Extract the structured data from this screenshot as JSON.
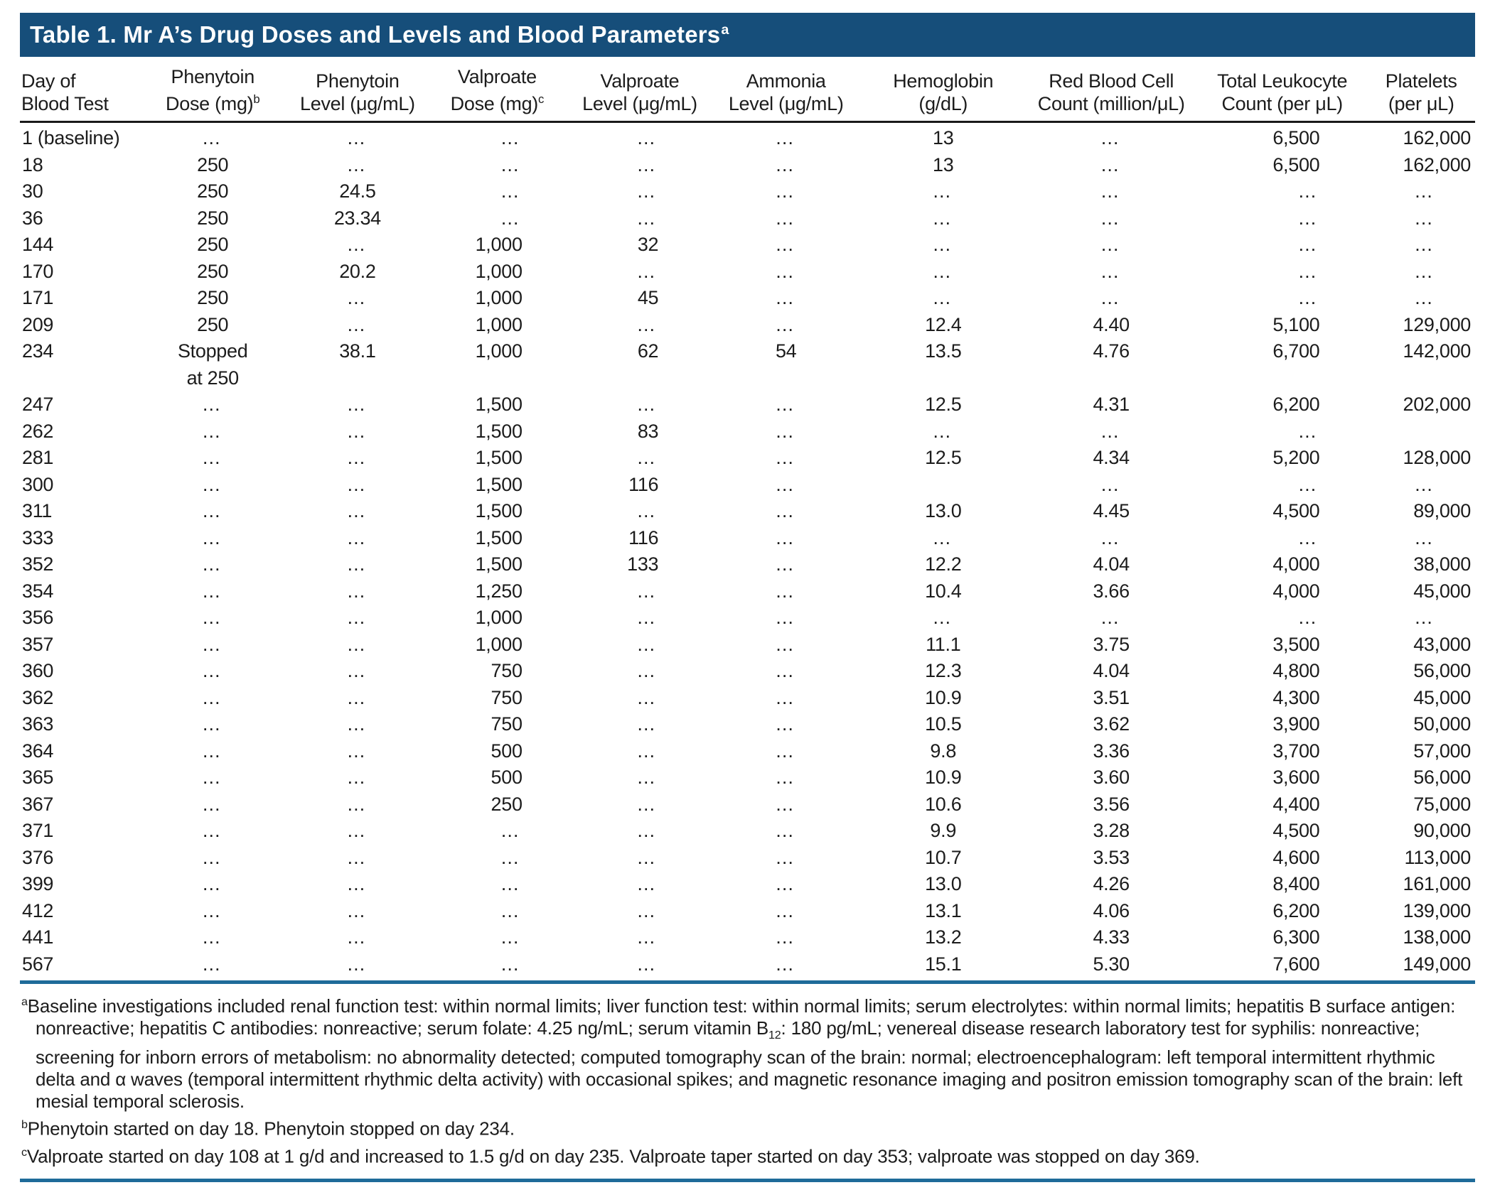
{
  "colors": {
    "title_bar": "#164e7a",
    "title_text": "#ffffff",
    "rule_blue": "#1e6b99",
    "rule_black": "#1a1a1a",
    "body_text": "#1c1c1c"
  },
  "table": {
    "title": "Table 1. Mr A’s Drug Doses and Levels and Blood Parameters",
    "title_superscript": "a",
    "columns": [
      {
        "line1": "Day of",
        "line2": "Blood Test",
        "sup": ""
      },
      {
        "line1": "Phenytoin",
        "line2": "Dose (mg)",
        "sup": "b"
      },
      {
        "line1": "Phenytoin",
        "line2": "Level (μg/mL)",
        "sup": ""
      },
      {
        "line1": "Valproate",
        "line2": "Dose (mg)",
        "sup": "c"
      },
      {
        "line1": "Valproate",
        "line2": "Level (μg/mL)",
        "sup": ""
      },
      {
        "line1": "Ammonia",
        "line2": "Level (μg/mL)",
        "sup": ""
      },
      {
        "line1": "Hemoglobin",
        "line2": "(g/dL)",
        "sup": ""
      },
      {
        "line1": "Red Blood Cell",
        "line2": "Count (million/μL)",
        "sup": ""
      },
      {
        "line1": "Total Leukocyte",
        "line2": "Count (per μL)",
        "sup": ""
      },
      {
        "line1": "Platelets",
        "line2": "(per μL)",
        "sup": ""
      }
    ],
    "rows": [
      [
        "1 (baseline)",
        "…",
        "…",
        "…",
        "…",
        "…",
        "13",
        "…",
        "6,500",
        "162,000"
      ],
      [
        "18",
        "250",
        "…",
        "…",
        "…",
        "…",
        "13",
        "…",
        "6,500",
        "162,000"
      ],
      [
        "30",
        "250",
        "24.5",
        "…",
        "…",
        "…",
        "…",
        "…",
        "…",
        "…"
      ],
      [
        "36",
        "250",
        "23.34",
        "…",
        "…",
        "…",
        "…",
        "…",
        "…",
        "…"
      ],
      [
        "144",
        "250",
        "…",
        "1,000",
        "32",
        "…",
        "…",
        "…",
        "…",
        "…"
      ],
      [
        "170",
        "250",
        "20.2",
        "1,000",
        "…",
        "…",
        "…",
        "…",
        "…",
        "…"
      ],
      [
        "171",
        "250",
        "…",
        "1,000",
        "45",
        "…",
        "…",
        "…",
        "…",
        "…"
      ],
      [
        "209",
        "250",
        "…",
        "1,000",
        "…",
        "…",
        "12.4",
        "4.40",
        "5,100",
        "129,000"
      ],
      [
        "234",
        "Stopped\nat 250",
        "38.1",
        "1,000",
        "62",
        "54",
        "13.5",
        "4.76",
        "6,700",
        "142,000"
      ],
      [
        "247",
        "…",
        "…",
        "1,500",
        "…",
        "…",
        "12.5",
        "4.31",
        "6,200",
        "202,000"
      ],
      [
        "262",
        "…",
        "…",
        "1,500",
        "83",
        "…",
        "…",
        "…",
        "…",
        ""
      ],
      [
        "281",
        "…",
        "…",
        "1,500",
        "…",
        "…",
        "12.5",
        "4.34",
        "5,200",
        "128,000"
      ],
      [
        "300",
        "…",
        "…",
        "1,500",
        "116",
        "…",
        "",
        "…",
        "…",
        "…"
      ],
      [
        "311",
        "…",
        "…",
        "1,500",
        "…",
        "…",
        "13.0",
        "4.45",
        "4,500",
        "89,000"
      ],
      [
        "333",
        "…",
        "…",
        "1,500",
        "116",
        "…",
        "…",
        "…",
        "…",
        "…"
      ],
      [
        "352",
        "…",
        "…",
        "1,500",
        "133",
        "…",
        "12.2",
        "4.04",
        "4,000",
        "38,000"
      ],
      [
        "354",
        "…",
        "…",
        "1,250",
        "…",
        "…",
        "10.4",
        "3.66",
        "4,000",
        "45,000"
      ],
      [
        "356",
        "…",
        "…",
        "1,000",
        "…",
        "…",
        "…",
        "…",
        "…",
        "…"
      ],
      [
        "357",
        "…",
        "…",
        "1,000",
        "…",
        "…",
        "11.1",
        "3.75",
        "3,500",
        "43,000"
      ],
      [
        "360",
        "…",
        "…",
        "750",
        "…",
        "…",
        "12.3",
        "4.04",
        "4,800",
        "56,000"
      ],
      [
        "362",
        "…",
        "…",
        "750",
        "…",
        "…",
        "10.9",
        "3.51",
        "4,300",
        "45,000"
      ],
      [
        "363",
        "…",
        "…",
        "750",
        "…",
        "…",
        "10.5",
        "3.62",
        "3,900",
        "50,000"
      ],
      [
        "364",
        "…",
        "…",
        "500",
        "…",
        "…",
        "9.8",
        "3.36",
        "3,700",
        "57,000"
      ],
      [
        "365",
        "…",
        "…",
        "500",
        "…",
        "…",
        "10.9",
        "3.60",
        "3,600",
        "56,000"
      ],
      [
        "367",
        "…",
        "…",
        "250",
        "…",
        "…",
        "10.6",
        "3.56",
        "4,400",
        "75,000"
      ],
      [
        "371",
        "…",
        "…",
        "…",
        "…",
        "…",
        "9.9",
        "3.28",
        "4,500",
        "90,000"
      ],
      [
        "376",
        "…",
        "…",
        "…",
        "…",
        "…",
        "10.7",
        "3.53",
        "4,600",
        "113,000"
      ],
      [
        "399",
        "…",
        "…",
        "…",
        "…",
        "…",
        "13.0",
        "4.26",
        "8,400",
        "161,000"
      ],
      [
        "412",
        "…",
        "…",
        "…",
        "…",
        "…",
        "13.1",
        "4.06",
        "6,200",
        "139,000"
      ],
      [
        "441",
        "…",
        "…",
        "…",
        "…",
        "…",
        "13.2",
        "4.33",
        "6,300",
        "138,000"
      ],
      [
        "567",
        "…",
        "…",
        "…",
        "…",
        "…",
        "15.1",
        "5.30",
        "7,600",
        "149,000"
      ]
    ]
  },
  "footnotes": {
    "a": {
      "marker": "a",
      "segments": [
        {
          "type": "text",
          "text": "Baseline investigations included renal function test: within normal limits; liver function test: within normal limits; serum electrolytes: within normal limits; hepatitis B surface antigen: nonreactive; hepatitis C antibodies: nonreactive; serum folate: 4.25 ng/mL; serum vitamin B"
        },
        {
          "type": "sub",
          "text": "12"
        },
        {
          "type": "text",
          "text": ": 180 pg/mL; venereal disease research laboratory test for syphilis: nonreactive; screening for inborn errors of metabolism: no abnormality detected; computed tomography scan of the brain: normal; electroencephalogram: left temporal intermittent rhythmic delta and α waves (temporal intermittent rhythmic delta activity) with occasional spikes; and magnetic resonance imaging and positron emission tomography scan of the brain: left mesial temporal sclerosis."
        }
      ]
    },
    "b": {
      "marker": "b",
      "text": "Phenytoin started on day 18. Phenytoin stopped on day 234."
    },
    "c": {
      "marker": "c",
      "text": "Valproate started on day 108 at 1 g/d and increased to 1.5 g/d on day 235. Valproate taper started on day 353; valproate was stopped on day 369."
    }
  }
}
